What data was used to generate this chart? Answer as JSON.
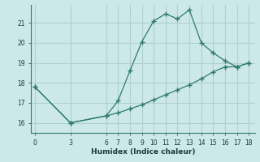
{
  "xlabel": "Humidex (Indice chaleur)",
  "bg_color": "#cce8e8",
  "grid_color": "#b0d0d0",
  "line_color": "#2e7b6b",
  "line1_x": [
    0,
    3,
    6,
    7,
    8,
    9,
    10,
    11,
    12,
    13,
    14,
    15,
    16,
    17,
    18
  ],
  "line1_y": [
    17.8,
    16.0,
    16.35,
    17.1,
    18.6,
    20.05,
    21.1,
    21.45,
    21.2,
    21.65,
    20.0,
    19.5,
    19.1,
    18.8,
    19.0
  ],
  "line2_x": [
    0,
    3,
    6,
    7,
    8,
    9,
    10,
    11,
    12,
    13,
    14,
    15,
    16,
    17,
    18
  ],
  "line2_y": [
    17.8,
    16.0,
    16.35,
    16.5,
    16.7,
    16.9,
    17.15,
    17.4,
    17.65,
    17.9,
    18.2,
    18.55,
    18.8,
    18.8,
    19.0
  ],
  "xticks": [
    0,
    3,
    6,
    7,
    8,
    9,
    10,
    11,
    12,
    13,
    14,
    15,
    16,
    17,
    18
  ],
  "yticks": [
    16,
    17,
    18,
    19,
    20,
    21
  ],
  "xlim": [
    -0.3,
    18.5
  ],
  "ylim": [
    15.5,
    21.9
  ]
}
